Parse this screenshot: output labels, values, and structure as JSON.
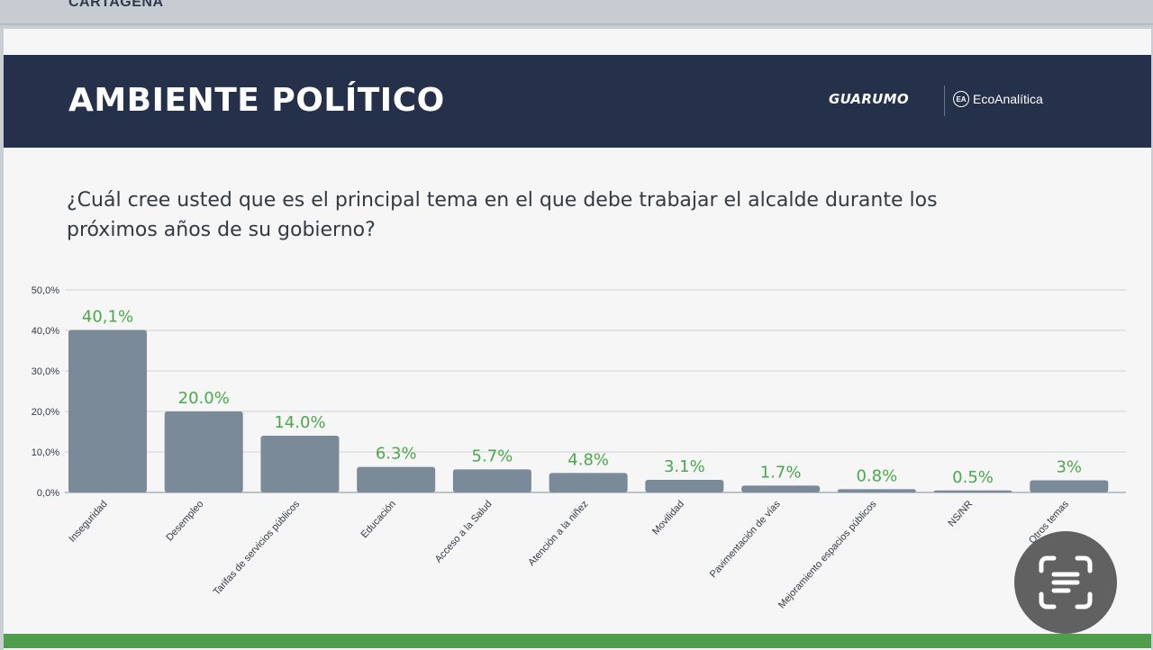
{
  "top_strip": {
    "city": "CARTAGENA"
  },
  "header": {
    "title": "AMBIENTE POLÍTICO",
    "logo_left": "GUARUMO",
    "logo_right": "EcoAnalítica",
    "logo_badge": "EA"
  },
  "question": "¿Cuál cree usted que es el principal tema en el que debe trabajar el alcalde durante los próximos años de su gobierno?",
  "colors": {
    "bar": "#7a8a99",
    "value_label": "#4aa84a",
    "header_bg": "#25304b",
    "footer": "#4e9e4c"
  },
  "chart_data": {
    "type": "bar",
    "title": "",
    "xlabel": "",
    "ylabel": "",
    "ylim": [
      0,
      50
    ],
    "grid": true,
    "y_ticks": [
      "0,0%",
      "10,0%",
      "20,0%",
      "30,0%",
      "40,0%",
      "50,0%"
    ],
    "categories": [
      "Inseguridad",
      "Desempleo",
      "Tarifas de servicios públicos",
      "Educación",
      "Acceso a la Salud",
      "Atención a la niñez",
      "Movilidad",
      "Pavimentación de vías",
      "Mejoramiento espacios públicos",
      "NS/NR",
      "Otros temas"
    ],
    "values": [
      40.1,
      20.0,
      14.0,
      6.3,
      5.7,
      4.8,
      3.1,
      1.7,
      0.8,
      0.5,
      3
    ],
    "value_labels": [
      "40,1%",
      "20.0%",
      "14.0%",
      "6.3%",
      "5.7%",
      "4.8%",
      "3.1%",
      "1.7%",
      "0.8%",
      "0.5%",
      "3%"
    ]
  }
}
